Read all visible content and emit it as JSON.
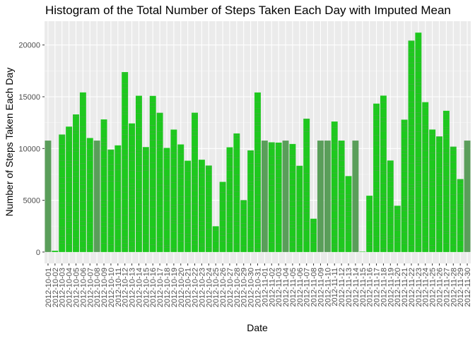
{
  "chart_data": {
    "type": "bar",
    "title": "Histogram of the Total Number of Steps Taken Each Day with Imputed Mean",
    "xlabel": "Date",
    "ylabel": "Number of Steps Taken Each Day",
    "ylim": [
      -1100,
      22300
    ],
    "yticks": [
      0,
      5000,
      10000,
      15000,
      20000
    ],
    "grid": true,
    "legend": "none",
    "colors": {
      "panel": "#ebebeb",
      "grid_major": "#ffffff",
      "grid_minor": "#f5f5f5",
      "bar_fill": "#1ec81e",
      "bar_stripe": "#6e8e6e",
      "imputed_fill": "#5a9e5a",
      "tick": "#333333"
    },
    "categories": [
      "2012-10-01",
      "2012-10-02",
      "2012-10-03",
      "2012-10-04",
      "2012-10-05",
      "2012-10-06",
      "2012-10-07",
      "2012-10-08",
      "2012-10-09",
      "2012-10-10",
      "2012-10-11",
      "2012-10-12",
      "2012-10-13",
      "2012-10-14",
      "2012-10-15",
      "2012-10-16",
      "2012-10-17",
      "2012-10-18",
      "2012-10-19",
      "2012-10-20",
      "2012-10-21",
      "2012-10-22",
      "2012-10-23",
      "2012-10-24",
      "2012-10-25",
      "2012-10-26",
      "2012-10-27",
      "2012-10-28",
      "2012-10-29",
      "2012-10-30",
      "2012-10-31",
      "2012-11-01",
      "2012-11-02",
      "2012-11-03",
      "2012-11-04",
      "2012-11-05",
      "2012-11-06",
      "2012-11-07",
      "2012-11-08",
      "2012-11-09",
      "2012-11-10",
      "2012-11-11",
      "2012-11-12",
      "2012-11-13",
      "2012-11-14",
      "2012-11-15",
      "2012-11-16",
      "2012-11-17",
      "2012-11-18",
      "2012-11-19",
      "2012-11-20",
      "2012-11-21",
      "2012-11-22",
      "2012-11-23",
      "2012-11-24",
      "2012-11-25",
      "2012-11-26",
      "2012-11-27",
      "2012-11-28",
      "2012-11-29",
      "2012-11-30"
    ],
    "tick_labels": [
      "2012-10-01",
      "2012-10-02",
      "2012-10-03",
      "2012-10-04",
      "2012-10-05",
      "2012-10-06",
      "2012-10-07",
      "2012-10-08",
      "2012-10-09",
      "2012-10-10",
      "2012-10-11",
      "2012-10-12",
      "2012-10-13",
      "2012-10-14",
      "2012-10-15",
      "2012-10-16",
      "2012-10-17",
      "2012-10-18",
      "2012-10-19",
      "2012-10-20",
      "2012-10-21",
      "2012-10-22",
      "2012-10-23",
      "2012-10-24",
      "2012-10-25",
      "2012-10-26",
      "2012-10-27",
      "2012-10-28",
      "2012-10-29",
      "2012-10-30",
      "2012-10-31",
      "2012-11-01",
      "2012-11-02",
      "2012-11-03",
      "2012-11-04",
      "2012-11-05",
      "2012-11-06",
      "2012-11-07",
      "2012-11-08",
      "2012-11-09",
      "2012-11-10",
      "2012-11-11",
      "2012-11-12",
      "2012-11-13",
      "2012-11-14",
      "2012-11-15",
      "2012-11-16",
      "2012-11-17",
      "2012-11-18",
      "2012-11-19",
      "2012-11-20",
      "2012-11-21",
      "2012-11-22",
      "2012-11-23",
      "2012-11-24",
      "2012-11-25",
      "2012-11-26",
      "2012-11-27",
      "2012-11-28",
      "2012-11-29",
      "2012-11-30"
    ],
    "values": [
      10766,
      126,
      11352,
      12116,
      13294,
      15420,
      11015,
      10766,
      12811,
      9900,
      10304,
      17382,
      12426,
      15098,
      10139,
      15084,
      13452,
      10056,
      11829,
      10395,
      8821,
      13460,
      8918,
      8355,
      2492,
      6778,
      10119,
      11458,
      5018,
      9819,
      15414,
      10766,
      10600,
      10571,
      10766,
      10439,
      8334,
      12883,
      3219,
      10766,
      10766,
      12608,
      10765,
      7336,
      10766,
      41,
      5441,
      14339,
      15110,
      8841,
      4472,
      12787,
      20427,
      21194,
      14478,
      11834,
      11162,
      13646,
      10183,
      7047,
      10766
    ],
    "imputed": [
      true,
      false,
      false,
      false,
      false,
      false,
      false,
      true,
      false,
      false,
      false,
      false,
      false,
      false,
      false,
      false,
      false,
      false,
      false,
      false,
      false,
      false,
      false,
      false,
      false,
      false,
      false,
      false,
      false,
      false,
      false,
      true,
      false,
      false,
      true,
      false,
      false,
      false,
      false,
      true,
      true,
      false,
      false,
      false,
      true,
      false,
      false,
      false,
      false,
      false,
      false,
      false,
      false,
      false,
      false,
      false,
      false,
      false,
      false,
      false,
      true
    ]
  }
}
